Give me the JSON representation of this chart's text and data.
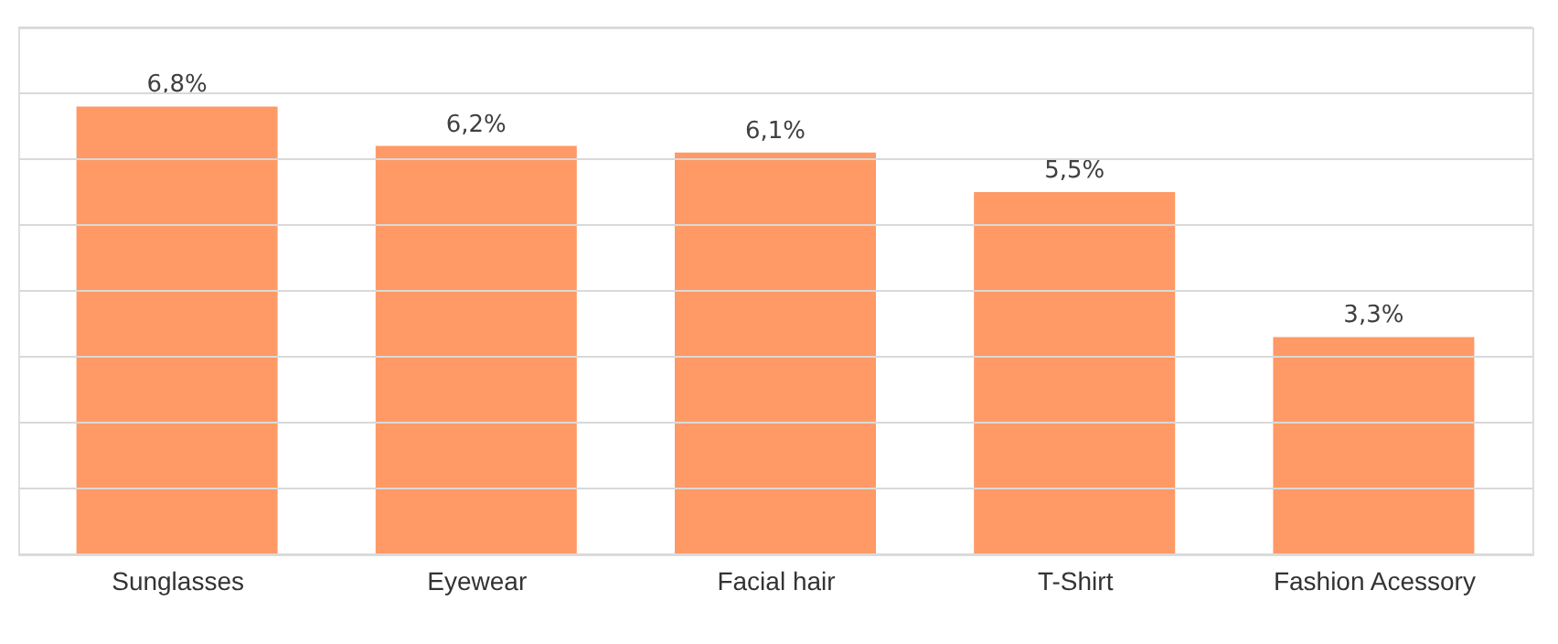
{
  "chart_data": {
    "type": "bar",
    "categories": [
      "Sunglasses",
      "Eyewear",
      "Facial hair",
      "T-Shirt",
      "Fashion Acessory"
    ],
    "values": [
      6.8,
      6.2,
      6.1,
      5.5,
      3.3
    ],
    "value_labels": [
      "6,8%",
      "6,2%",
      "6,1%",
      "5,5%",
      "3,3%"
    ],
    "color": "#ff9966",
    "ylim": [
      0,
      8
    ],
    "yticks": [
      {
        "value": 0,
        "label": null
      },
      {
        "value": 1,
        "label": null
      },
      {
        "value": 2,
        "label": null
      },
      {
        "value": 3,
        "label": null
      },
      {
        "value": 4,
        "label": null
      },
      {
        "value": 5,
        "label": null
      },
      {
        "value": 6,
        "label": null
      },
      {
        "value": 7,
        "label": null
      },
      {
        "value": 8,
        "label": null
      }
    ],
    "grid": "y",
    "tick_labels": "x"
  }
}
